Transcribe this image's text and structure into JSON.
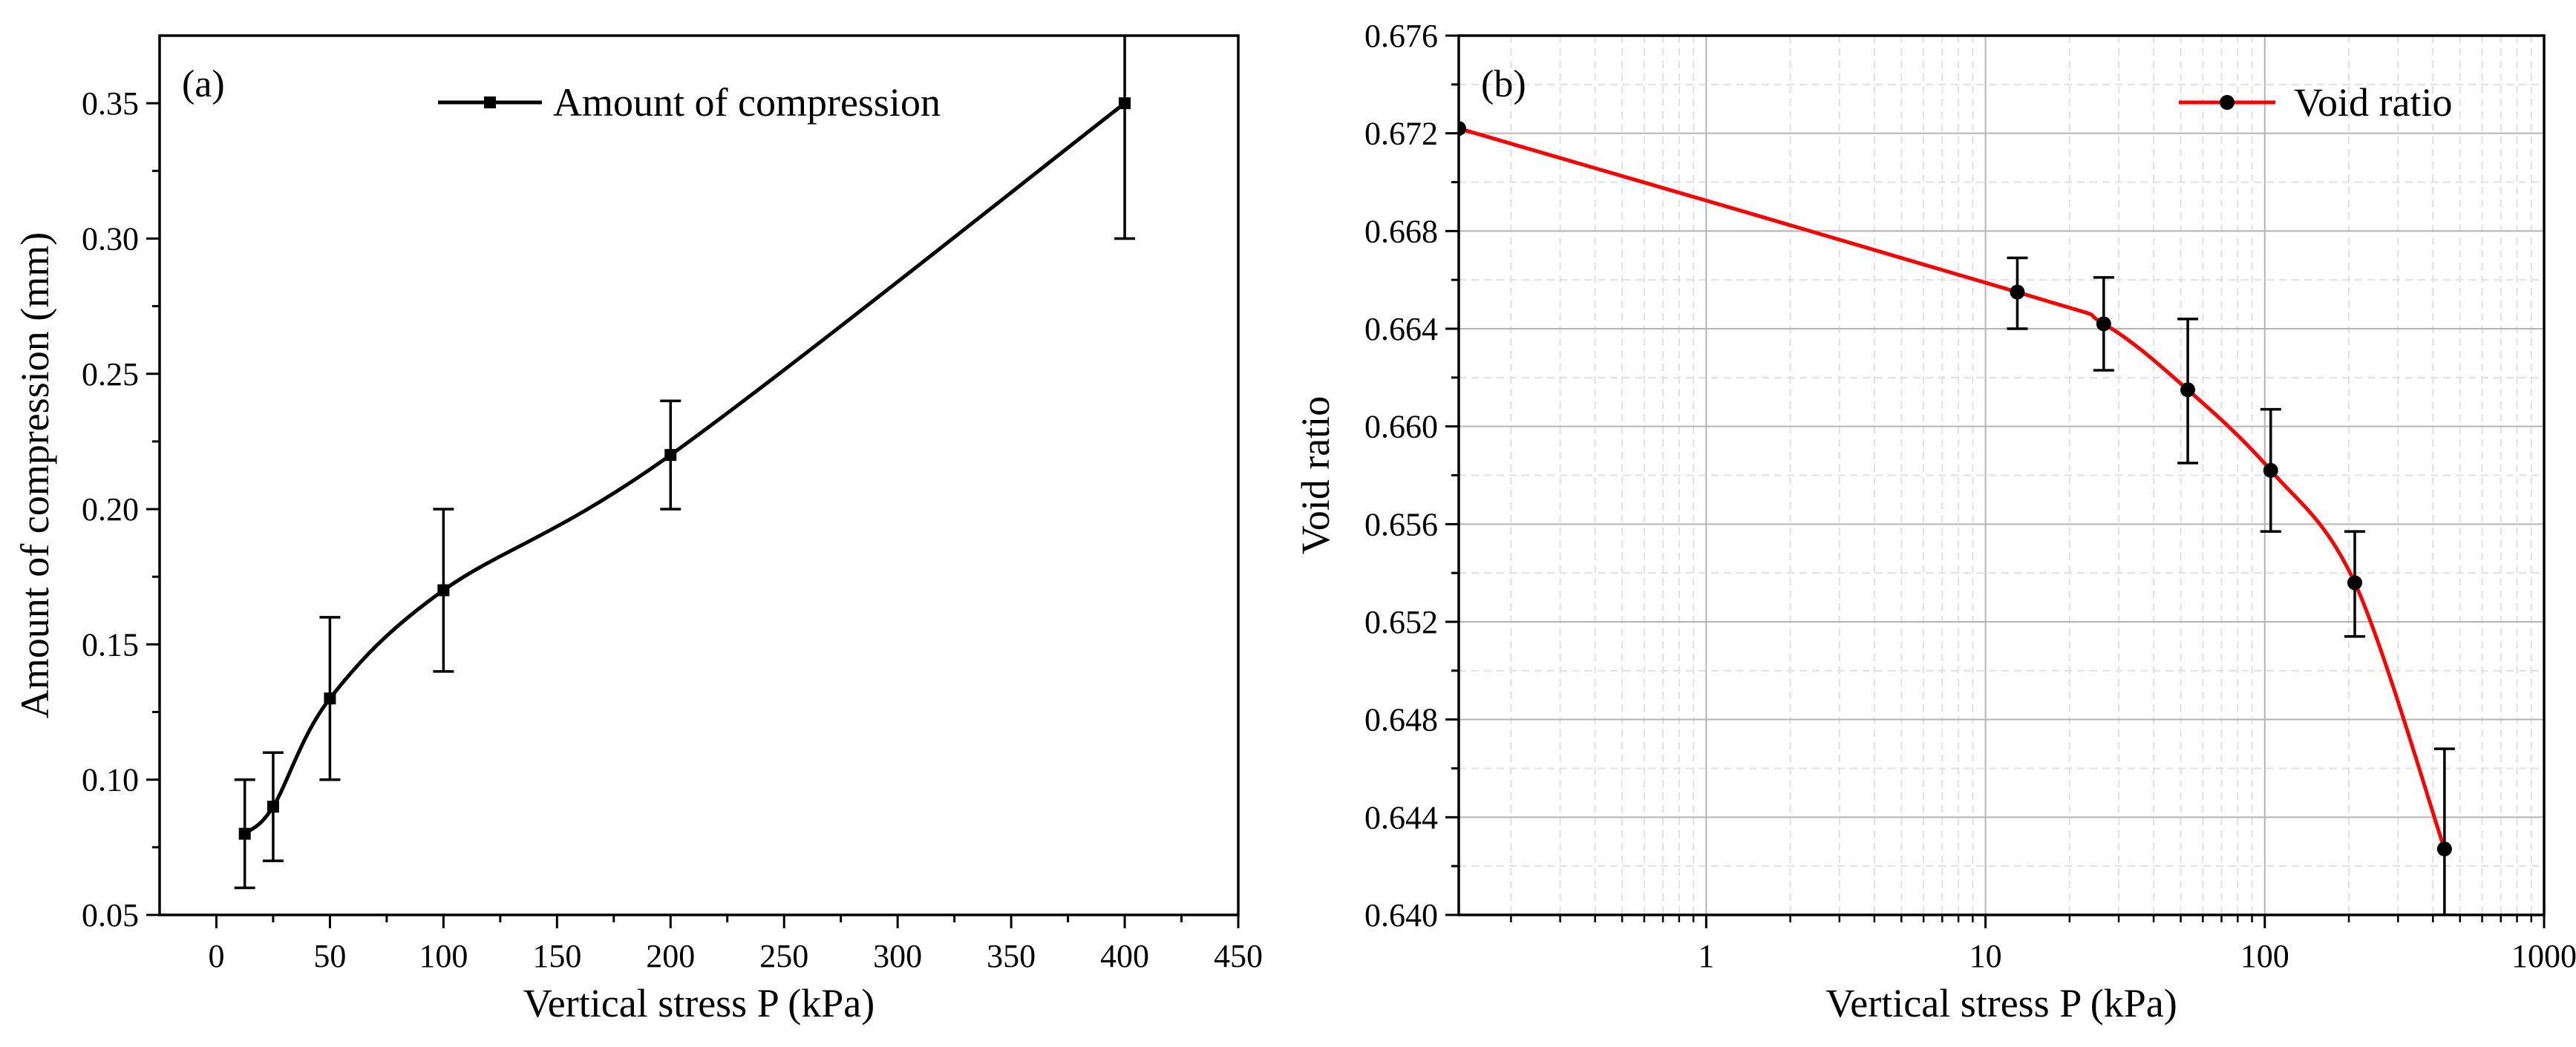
{
  "chart_data": [
    {
      "id": "a",
      "type": "line",
      "panel_label": "(a)",
      "xlabel": "Vertical stress P (kPa)",
      "ylabel": "Amount of compression (mm)",
      "xscale": "linear",
      "xlim": [
        -25,
        450
      ],
      "ylim": [
        0.05,
        0.375
      ],
      "x_ticks": [
        0,
        50,
        100,
        150,
        200,
        250,
        300,
        350,
        400,
        450
      ],
      "x_tick_labels": [
        "0",
        "50",
        "100",
        "150",
        "200",
        "250",
        "300",
        "350",
        "400",
        "450"
      ],
      "y_ticks": [
        0.05,
        0.1,
        0.15,
        0.2,
        0.25,
        0.3,
        0.35
      ],
      "y_tick_labels": [
        "0.05",
        "0.10",
        "0.15",
        "0.20",
        "0.25",
        "0.30",
        "0.35"
      ],
      "grid": false,
      "legend_position": "top-center",
      "series": [
        {
          "name": "Amount of compression",
          "color": "#000000",
          "marker": "square",
          "x": [
            12.5,
            25,
            50,
            100,
            200,
            400
          ],
          "y": [
            0.08,
            0.09,
            0.13,
            0.17,
            0.22,
            0.35
          ],
          "err_low": [
            0.06,
            0.07,
            0.1,
            0.14,
            0.2,
            0.3
          ],
          "err_high": [
            0.1,
            0.11,
            0.16,
            0.2,
            0.24,
            0.38
          ]
        }
      ]
    },
    {
      "id": "b",
      "type": "line",
      "panel_label": "(b)",
      "xlabel": "Vertical stress P (kPa)",
      "ylabel": "Void ratio",
      "xscale": "log",
      "xlim": [
        0.13,
        1000
      ],
      "ylim": [
        0.64,
        0.676
      ],
      "x_ticks": [
        1,
        10,
        100,
        1000
      ],
      "x_tick_labels": [
        "1",
        "10",
        "100",
        "1000"
      ],
      "y_ticks": [
        0.64,
        0.644,
        0.648,
        0.652,
        0.656,
        0.66,
        0.664,
        0.668,
        0.672,
        0.676
      ],
      "y_tick_labels": [
        "0.640",
        "0.644",
        "0.648",
        "0.652",
        "0.656",
        "0.660",
        "0.664",
        "0.668",
        "0.672",
        "0.676"
      ],
      "grid": true,
      "legend_position": "top-right",
      "series": [
        {
          "name": "Void ratio",
          "color": "#ff0000",
          "marker_color": "#000000",
          "marker": "circle",
          "x": [
            0.13,
            13,
            26.5,
            53,
            105,
            210,
            440
          ],
          "y": [
            0.6722,
            0.6655,
            0.6642,
            0.6615,
            0.6582,
            0.6536,
            0.6427
          ],
          "err_low": [
            null,
            0.664,
            0.6623,
            0.6585,
            0.6557,
            0.6514,
            0.64
          ],
          "err_high": [
            null,
            0.6669,
            0.6661,
            0.6644,
            0.6607,
            0.6557,
            0.6468
          ]
        }
      ]
    }
  ]
}
